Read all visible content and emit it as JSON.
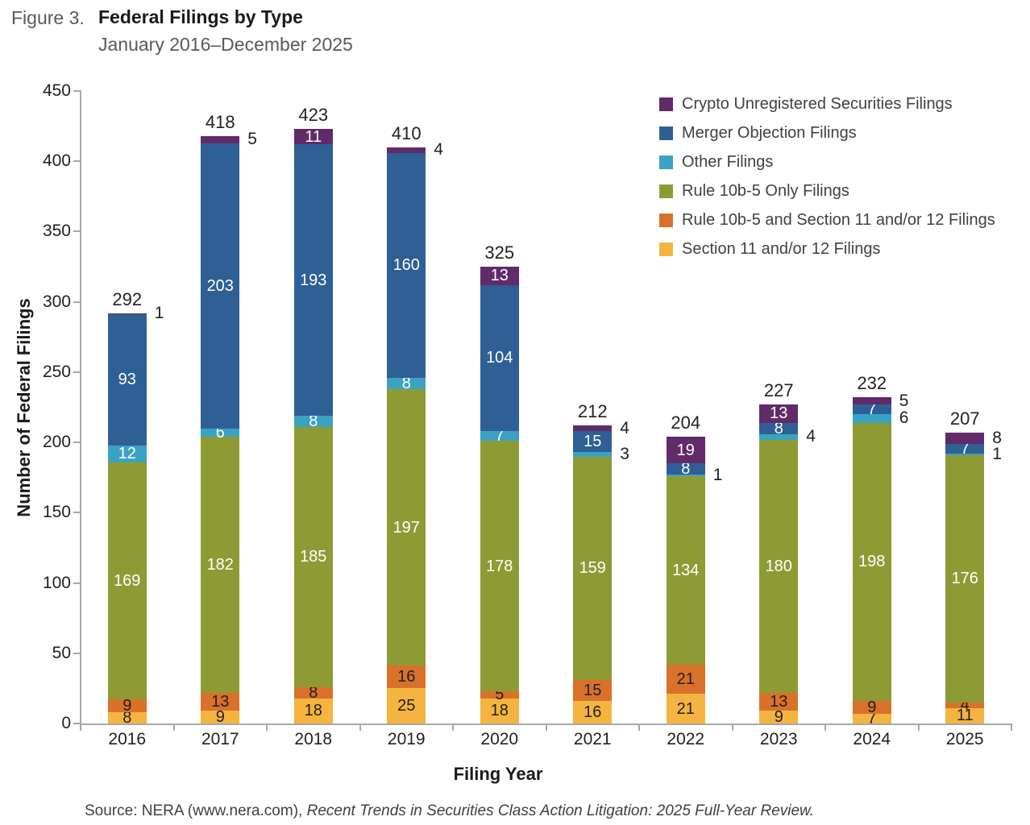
{
  "figure": {
    "prefix": "Figure 3.",
    "title": "Federal Filings by Type",
    "subtitle": "January 2016–December 2025"
  },
  "axes": {
    "y_title": "Number of Federal Filings",
    "x_title": "Filing Year",
    "y_ticks": [
      0,
      50,
      100,
      150,
      200,
      250,
      300,
      350,
      400,
      450
    ],
    "y_max": 450
  },
  "legend": [
    {
      "label": "Crypto Unregistered Securities Filings",
      "color": "#602b68"
    },
    {
      "label": "Merger Objection Filings",
      "color": "#2e6095"
    },
    {
      "label": "Other Filings",
      "color": "#3ba2c2"
    },
    {
      "label": "Rule 10b-5 Only Filings",
      "color": "#8e9b35"
    },
    {
      "label": "Rule 10b-5 and Section 11 and/or 12 Filings",
      "color": "#d9712b"
    },
    {
      "label": "Section 11 and/or 12 Filings",
      "color": "#f5b43f"
    }
  ],
  "chart_data": {
    "type": "bar",
    "stacked": true,
    "title": "Federal Filings by Type",
    "subtitle": "January 2016–December 2025",
    "xlabel": "Filing Year",
    "ylabel": "Number of Federal Filings",
    "ylim": [
      0,
      450
    ],
    "grid": false,
    "legend_position": "top-right",
    "categories": [
      "2016",
      "2017",
      "2018",
      "2019",
      "2020",
      "2021",
      "2022",
      "2023",
      "2024",
      "2025"
    ],
    "series": [
      {
        "name": "Section 11 and/or 12 Filings",
        "color": "#f5b43f",
        "label_color": "#231f20",
        "values": [
          8,
          9,
          18,
          25,
          18,
          16,
          21,
          9,
          7,
          11
        ],
        "label_pos": [
          "in",
          "in",
          "in",
          "in",
          "in",
          "in",
          "in",
          "in",
          "in",
          "in"
        ]
      },
      {
        "name": "Rule 10b-5 and Section 11 and/or 12 Filings",
        "color": "#d9712b",
        "label_color": "#231f20",
        "values": [
          9,
          13,
          8,
          16,
          5,
          15,
          21,
          13,
          9,
          4
        ],
        "label_pos": [
          "in",
          "in",
          "in",
          "in",
          "in",
          "in",
          "in",
          "in",
          "in",
          "in"
        ]
      },
      {
        "name": "Rule 10b-5 Only Filings",
        "color": "#8e9b35",
        "label_color": "#ffffff",
        "values": [
          169,
          182,
          185,
          197,
          178,
          159,
          134,
          180,
          198,
          176
        ],
        "label_pos": [
          "in",
          "in",
          "in",
          "in",
          "in",
          "in",
          "in",
          "in",
          "in",
          "in"
        ]
      },
      {
        "name": "Other Filings",
        "color": "#3ba2c2",
        "label_color": "#ffffff",
        "values": [
          12,
          6,
          8,
          8,
          7,
          3,
          1,
          4,
          6,
          1
        ],
        "label_pos": [
          "in",
          "in",
          "in",
          "in",
          "in",
          "side",
          "side",
          "side",
          "side",
          "side"
        ]
      },
      {
        "name": "Merger Objection Filings",
        "color": "#2e6095",
        "label_color": "#ffffff",
        "values": [
          93,
          203,
          193,
          160,
          104,
          15,
          8,
          8,
          7,
          7
        ],
        "label_pos": [
          "in",
          "in",
          "in",
          "in",
          "in",
          "in",
          "in",
          "in",
          "in",
          "in"
        ]
      },
      {
        "name": "Crypto Unregistered Securities Filings",
        "color": "#602b68",
        "label_color": "#ffffff",
        "values": [
          1,
          5,
          11,
          4,
          13,
          4,
          19,
          13,
          5,
          8
        ],
        "label_pos": [
          "side",
          "side",
          "in",
          "side",
          "in",
          "side",
          "in",
          "in",
          "side",
          "side"
        ]
      }
    ],
    "totals": [
      292,
      418,
      423,
      410,
      325,
      212,
      204,
      227,
      232,
      207
    ]
  },
  "source": {
    "normal": "Source: NERA (www.nera.com), ",
    "italic": "Recent Trends in Securities Class Action Litigation: 2025 Full-Year Review."
  }
}
